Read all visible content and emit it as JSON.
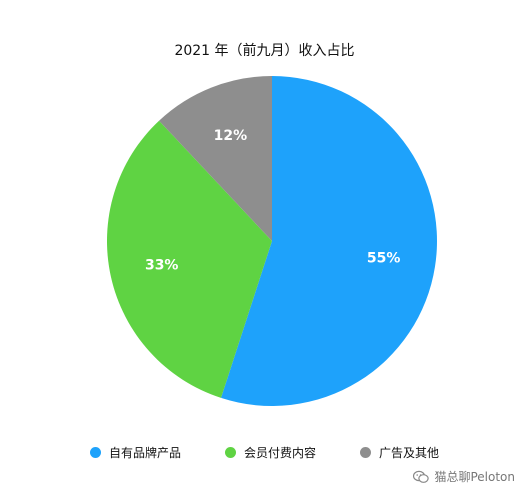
{
  "chart_data": {
    "type": "pie",
    "title": "2021 年（前九月）收入占比",
    "slices": [
      {
        "name": "自有品牌产品",
        "value": 55,
        "label": "55%",
        "color": "#1ea2fb"
      },
      {
        "name": "会员付费内容",
        "value": 33,
        "label": "33%",
        "color": "#5fd343"
      },
      {
        "name": "广告及其他",
        "value": 12,
        "label": "12%",
        "color": "#8e8e8e"
      }
    ],
    "legend_position": "bottom"
  },
  "watermark": {
    "text": "猫总聊Peloton",
    "icon": "wechat-icon"
  }
}
